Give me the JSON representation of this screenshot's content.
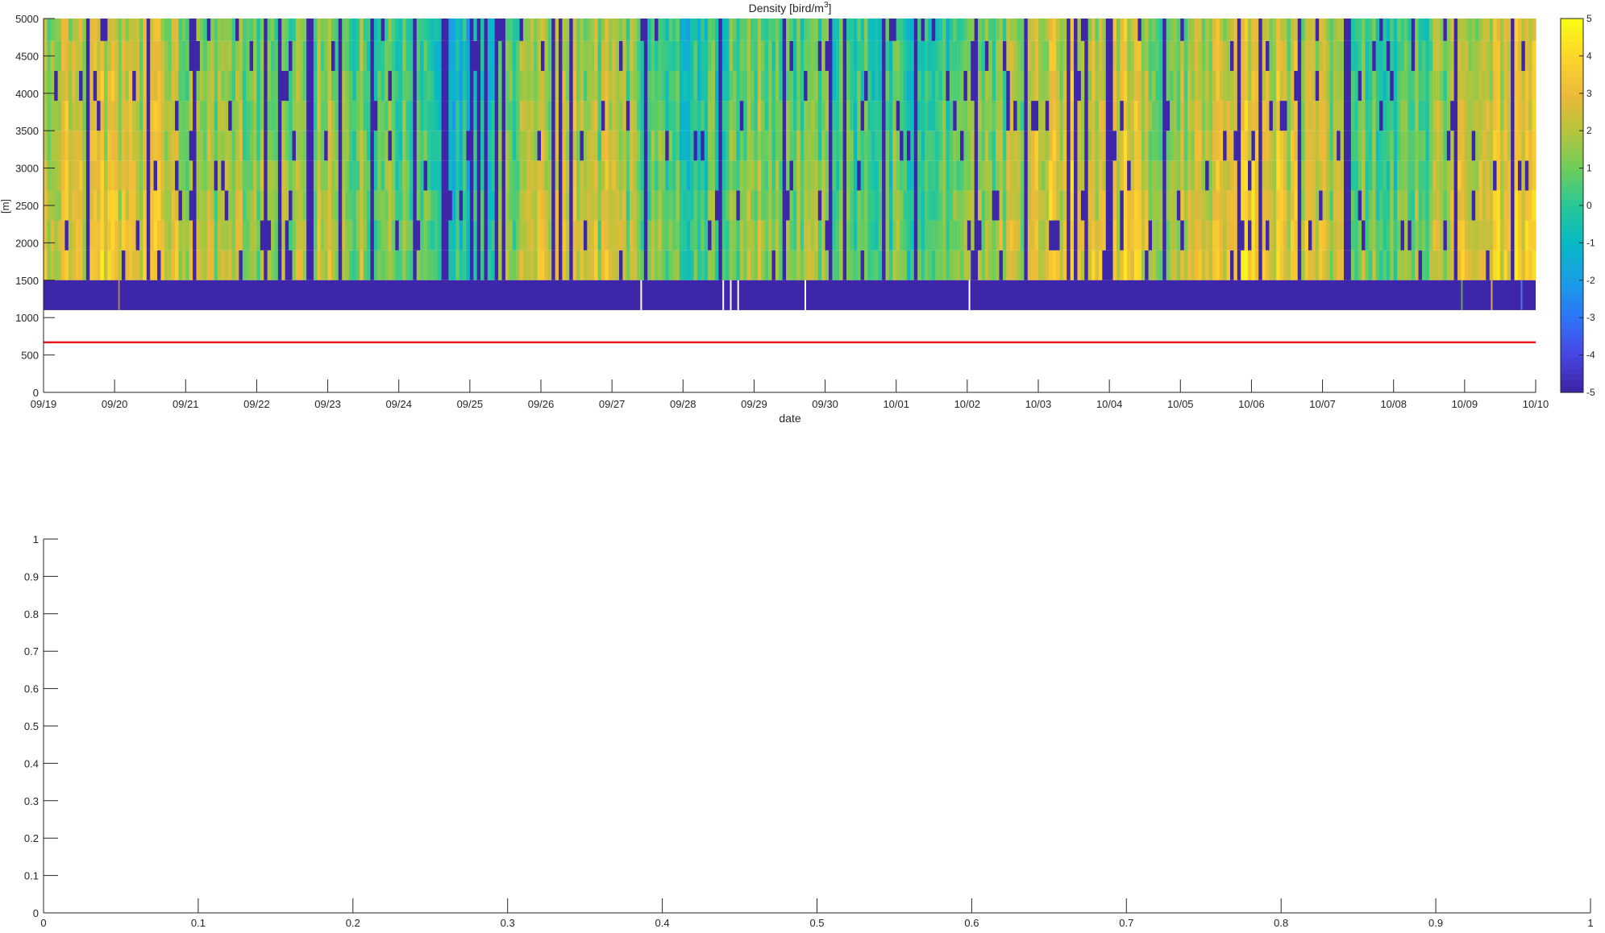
{
  "figure": {
    "title": "Density [bird/m",
    "title_sup": "3",
    "title_end": "]"
  },
  "chart_data": [
    {
      "type": "heatmap",
      "title": "Density [bird/m3]",
      "xlabel": "date",
      "ylabel": "[m]",
      "x_ticks": [
        "09/19",
        "09/20",
        "09/21",
        "09/22",
        "09/23",
        "09/24",
        "09/25",
        "09/26",
        "09/27",
        "09/28",
        "09/29",
        "09/30",
        "10/01",
        "10/02",
        "10/03",
        "10/04",
        "10/05",
        "10/06",
        "10/07",
        "10/08",
        "10/09",
        "10/10"
      ],
      "y_ticks": [
        0,
        500,
        1000,
        1500,
        2000,
        2500,
        3000,
        3500,
        4000,
        4500,
        5000
      ],
      "ylim": [
        0,
        5000
      ],
      "colorbar": {
        "ticks": [
          5,
          4,
          3,
          2,
          1,
          0,
          -1,
          -2,
          -3,
          -4,
          -5
        ],
        "range": [
          -5,
          5
        ],
        "colormap": "parula"
      },
      "altitude_bins_m": [
        1100,
        1500,
        1900,
        2300,
        2700,
        3100,
        3500,
        3900,
        4300,
        4700,
        5000
      ],
      "daily_mean_intensity": [
        {
          "date": "09/19",
          "value": 2.6
        },
        {
          "date": "09/20",
          "value": 3.2
        },
        {
          "date": "09/21",
          "value": 2.4
        },
        {
          "date": "09/22",
          "value": 1.6
        },
        {
          "date": "09/23",
          "value": 2.2
        },
        {
          "date": "09/24",
          "value": 1.0
        },
        {
          "date": "09/25",
          "value": -0.5
        },
        {
          "date": "09/26",
          "value": 2.5
        },
        {
          "date": "09/27",
          "value": 2.2
        },
        {
          "date": "09/28",
          "value": 0.3
        },
        {
          "date": "09/29",
          "value": 1.8
        },
        {
          "date": "09/30",
          "value": 1.2
        },
        {
          "date": "10/01",
          "value": 0.8
        },
        {
          "date": "10/02",
          "value": 1.2
        },
        {
          "date": "10/03",
          "value": 3.0
        },
        {
          "date": "10/04",
          "value": 3.4
        },
        {
          "date": "10/05",
          "value": 2.0
        },
        {
          "date": "10/06",
          "value": 3.6
        },
        {
          "date": "10/07",
          "value": 2.2
        },
        {
          "date": "10/08",
          "value": 1.0
        },
        {
          "date": "10/09",
          "value": 2.4
        },
        {
          "date": "10/10",
          "value": 3.6
        }
      ],
      "red_line_m": 670,
      "low_band_m": [
        1100,
        1500
      ],
      "grid": false
    },
    {
      "type": "line",
      "title": "",
      "xlabel": "",
      "ylabel": "",
      "xlim": [
        0,
        1
      ],
      "ylim": [
        0,
        1
      ],
      "x_ticks": [
        "0",
        "0.1",
        "0.2",
        "0.3",
        "0.4",
        "0.5",
        "0.6",
        "0.7",
        "0.8",
        "0.9",
        "1"
      ],
      "y_ticks": [
        "0",
        "0.1",
        "0.2",
        "0.3",
        "0.4",
        "0.5",
        "0.6",
        "0.7",
        "0.8",
        "0.9",
        "1"
      ],
      "series": [],
      "grid": false
    }
  ],
  "colors": {
    "background": "#ffffff",
    "axis": "#262626",
    "red_line": "#e8171f",
    "no_data": "#3e26a8"
  }
}
